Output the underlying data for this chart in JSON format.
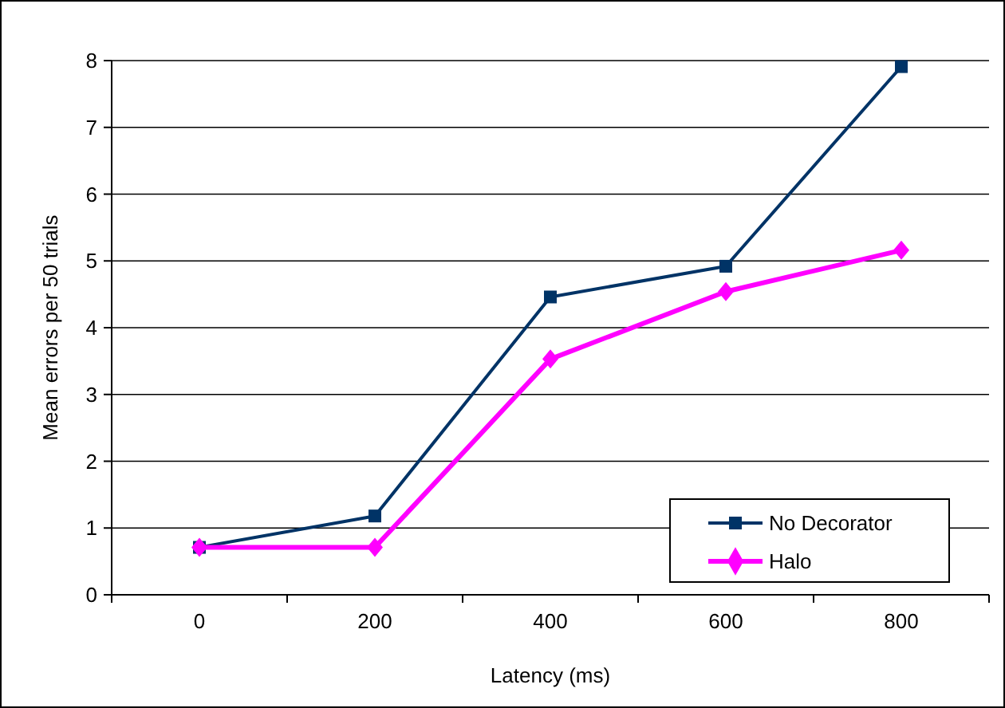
{
  "chart_data": {
    "type": "line",
    "xlabel": "Latency (ms)",
    "ylabel": "Mean errors per 50 trials",
    "categories": [
      "0",
      "200",
      "400",
      "600",
      "800"
    ],
    "series": [
      {
        "name": "No Decorator",
        "color": "#003366",
        "marker": "square",
        "values": [
          0.71,
          1.18,
          4.46,
          4.92,
          7.91
        ]
      },
      {
        "name": "Halo",
        "color": "#ff00ff",
        "marker": "diamond",
        "values": [
          0.71,
          0.71,
          3.53,
          4.54,
          5.16
        ]
      }
    ],
    "ylim": [
      0,
      8
    ],
    "yticks": [
      0,
      1,
      2,
      3,
      4,
      5,
      6,
      7,
      8
    ],
    "grid": "y",
    "legend": "bottom right",
    "line_style": "solid"
  }
}
